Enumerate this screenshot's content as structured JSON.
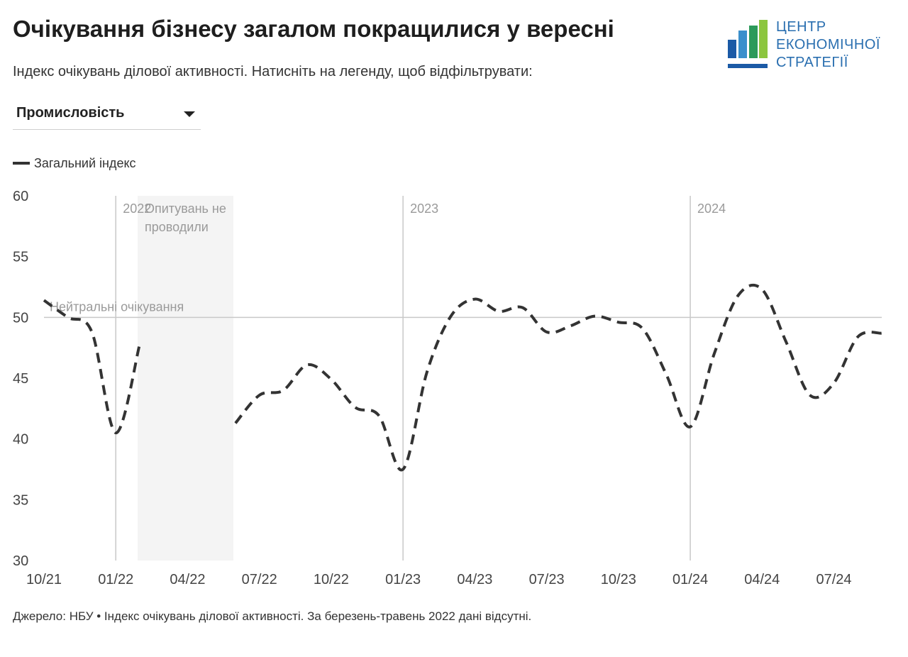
{
  "header": {
    "title": "Очікування бізнесу загалом покращилися у вересні",
    "subtitle": "Індекс очікувань ділової активності. Натисніть на легенду, щоб відфільтрувати:"
  },
  "filter": {
    "selected": "Промисловість"
  },
  "logo": {
    "line1": "ЦЕНТР",
    "line2": "ЕКОНОМІЧНОЇ",
    "line3": "СТРАТЕГІЇ",
    "colors": [
      "#1b5aa6",
      "#3a8fcc",
      "#2c9a5a",
      "#8cc63f"
    ]
  },
  "footer": {
    "source": "Джерело: НБУ • Індекс очікувань ділової активності. За березень-травень 2022 дані відсутні."
  },
  "chart_data": {
    "type": "line",
    "title": "Очікування бізнесу загалом покращилися у вересні",
    "ylim": [
      30,
      60
    ],
    "yticks": [
      30,
      35,
      40,
      45,
      50,
      55,
      60
    ],
    "x_range": [
      "2021-10",
      "2024-09"
    ],
    "x_tick_labels": [
      "10/21",
      "01/22",
      "04/22",
      "07/22",
      "10/22",
      "01/23",
      "04/23",
      "07/23",
      "10/23",
      "01/24",
      "04/24",
      "07/24"
    ],
    "x_ticks": [
      "2021-10",
      "2022-01",
      "2022-04",
      "2022-07",
      "2022-10",
      "2023-01",
      "2023-04",
      "2023-07",
      "2023-10",
      "2024-01",
      "2024-04",
      "2024-07"
    ],
    "grid": false,
    "series_color": "#333333",
    "line_style": "dashed",
    "series": [
      {
        "name": "Загальний індекс",
        "points": [
          [
            "2021-10",
            51.4
          ],
          [
            "2021-11",
            50.0
          ],
          [
            "2021-12",
            48.8
          ],
          [
            "2022-01",
            40.5
          ],
          [
            "2022-02",
            47.8
          ],
          [
            "2022-06",
            41.3
          ],
          [
            "2022-07",
            43.6
          ],
          [
            "2022-08",
            44.0
          ],
          [
            "2022-09",
            46.1
          ],
          [
            "2022-10",
            44.9
          ],
          [
            "2022-11",
            42.6
          ],
          [
            "2022-12",
            41.9
          ],
          [
            "2023-01",
            37.5
          ],
          [
            "2023-02",
            45.5
          ],
          [
            "2023-03",
            50.1
          ],
          [
            "2023-04",
            51.5
          ],
          [
            "2023-05",
            50.5
          ],
          [
            "2023-06",
            50.8
          ],
          [
            "2023-07",
            48.8
          ],
          [
            "2023-08",
            49.3
          ],
          [
            "2023-09",
            50.1
          ],
          [
            "2023-10",
            49.6
          ],
          [
            "2023-11",
            49.1
          ],
          [
            "2023-12",
            45.3
          ],
          [
            "2024-01",
            41.0
          ],
          [
            "2024-02",
            47.0
          ],
          [
            "2024-03",
            51.8
          ],
          [
            "2024-04",
            52.3
          ],
          [
            "2024-05",
            48.0
          ],
          [
            "2024-06",
            43.6
          ],
          [
            "2024-07",
            44.6
          ],
          [
            "2024-08",
            48.4
          ],
          [
            "2024-09",
            48.7
          ]
        ]
      }
    ],
    "reference_line": {
      "value": 50,
      "label": "Нейтральні очікування"
    },
    "year_markers": [
      {
        "at": "2022-01",
        "label": "2022"
      },
      {
        "at": "2023-01",
        "label": "2023"
      },
      {
        "at": "2024-01",
        "label": "2024"
      }
    ],
    "shaded_region": {
      "from": "2022-02",
      "to": "2022-06",
      "label_lines": [
        "Опитувань не",
        "проводили"
      ]
    }
  }
}
